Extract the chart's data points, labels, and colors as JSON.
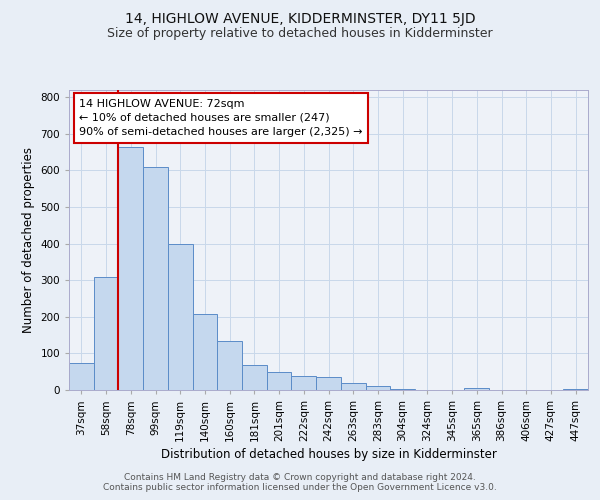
{
  "title": "14, HIGHLOW AVENUE, KIDDERMINSTER, DY11 5JD",
  "subtitle": "Size of property relative to detached houses in Kidderminster",
  "xlabel": "Distribution of detached houses by size in Kidderminster",
  "ylabel": "Number of detached properties",
  "categories": [
    "37sqm",
    "58sqm",
    "78sqm",
    "99sqm",
    "119sqm",
    "140sqm",
    "160sqm",
    "181sqm",
    "201sqm",
    "222sqm",
    "242sqm",
    "263sqm",
    "283sqm",
    "304sqm",
    "324sqm",
    "345sqm",
    "365sqm",
    "386sqm",
    "406sqm",
    "427sqm",
    "447sqm"
  ],
  "values": [
    75,
    310,
    665,
    610,
    400,
    207,
    135,
    68,
    48,
    37,
    35,
    20,
    12,
    3,
    0,
    0,
    5,
    0,
    0,
    0,
    3
  ],
  "bar_color": "#c5d8ee",
  "bar_edge_color": "#5b8cc8",
  "bar_linewidth": 0.7,
  "vline_color": "#cc0000",
  "annotation_line1": "14 HIGHLOW AVENUE: 72sqm",
  "annotation_line2": "← 10% of detached houses are smaller (247)",
  "annotation_line3": "90% of semi-detached houses are larger (2,325) →",
  "annotation_box_facecolor": "#ffffff",
  "annotation_box_edgecolor": "#cc0000",
  "ylim": [
    0,
    820
  ],
  "yticks": [
    0,
    100,
    200,
    300,
    400,
    500,
    600,
    700,
    800
  ],
  "grid_color": "#c8d8ea",
  "bg_color": "#e8eef6",
  "plot_bg_color": "#eef2f8",
  "footer1": "Contains HM Land Registry data © Crown copyright and database right 2024.",
  "footer2": "Contains public sector information licensed under the Open Government Licence v3.0.",
  "title_fontsize": 10,
  "subtitle_fontsize": 9,
  "xlabel_fontsize": 8.5,
  "ylabel_fontsize": 8.5,
  "tick_fontsize": 7.5,
  "annotation_fontsize": 8,
  "footer_fontsize": 6.5,
  "vline_x_idx": 1.5
}
